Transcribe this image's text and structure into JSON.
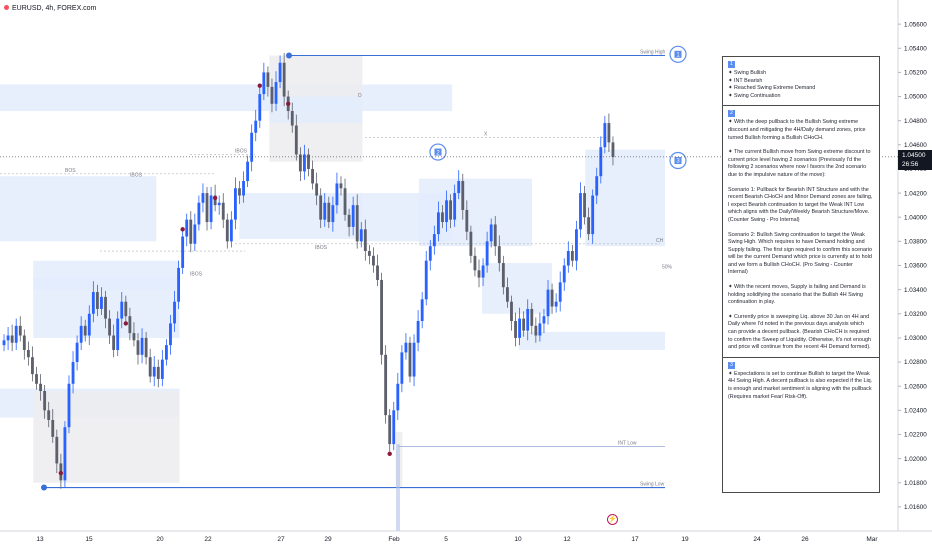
{
  "header": {
    "symbol": "EURUSD, 4h, FOREX.com"
  },
  "colors": {
    "up": "#2962ff",
    "down": "#5d606b",
    "demand": "#e3ecfd",
    "supply": "#ececef",
    "swing_line": "#3a6fd8",
    "marker": "#8b1a3a",
    "price_tag": "#131722"
  },
  "chart_data": {
    "type": "candlestick",
    "symbol": "EURUSD",
    "timeframe": "4h",
    "ylim": [
      1.014,
      1.058
    ],
    "y_ticks": [
      "1.05600",
      "1.05400",
      "1.05200",
      "1.05000",
      "1.04800",
      "1.04600",
      "1.04400",
      "1.04200",
      "1.04000",
      "1.03800",
      "1.03600",
      "1.03400",
      "1.03200",
      "1.03000",
      "1.02800",
      "1.02600",
      "1.02400",
      "1.02200",
      "1.02000",
      "1.01800",
      "1.01600"
    ],
    "x_ticks": [
      "13",
      "15",
      "20",
      "22",
      "27",
      "29",
      "Feb",
      "5",
      "10",
      "12",
      "17",
      "19",
      "24",
      "26",
      "Mar"
    ],
    "current_price": "1.04500",
    "countdown": "26:56",
    "closes": [
      1.0298,
      1.0302,
      1.0296,
      1.031,
      1.0302,
      1.029,
      1.0284,
      1.027,
      1.0262,
      1.0256,
      1.024,
      1.0232,
      1.0218,
      1.0196,
      1.0182,
      1.0226,
      1.0262,
      1.028,
      1.0296,
      1.031,
      1.0302,
      1.032,
      1.0338,
      1.0324,
      1.0334,
      1.0316,
      1.0302,
      1.029,
      1.0316,
      1.033,
      1.0318,
      1.0304,
      1.0298,
      1.0286,
      1.03,
      1.0284,
      1.0268,
      1.0276,
      1.0266,
      1.0282,
      1.0294,
      1.0312,
      1.033,
      1.0358,
      1.0384,
      1.0398,
      1.0378,
      1.0394,
      1.0412,
      1.042,
      1.0396,
      1.0418,
      1.041,
      1.0412,
      1.0398,
      1.038,
      1.0398,
      1.0424,
      1.0418,
      1.043,
      1.0446,
      1.047,
      1.048,
      1.0502,
      1.052,
      1.0508,
      1.0494,
      1.0512,
      1.0528,
      1.05,
      1.0488,
      1.0476,
      1.0452,
      1.0438,
      1.0452,
      1.044,
      1.0428,
      1.0418,
      1.0398,
      1.0412,
      1.0396,
      1.041,
      1.0428,
      1.0424,
      1.0402,
      1.0392,
      1.041,
      1.038,
      1.039,
      1.0372,
      1.0368,
      1.036,
      1.0348,
      1.0286,
      1.0236,
      1.0212,
      1.024,
      1.0262,
      1.0288,
      1.0296,
      1.0268,
      1.0296,
      1.0314,
      1.0332,
      1.0364,
      1.0376,
      1.0386,
      1.0404,
      1.0396,
      1.0414,
      1.0398,
      1.042,
      1.043,
      1.0406,
      1.0388,
      1.0368,
      1.0356,
      1.035,
      1.036,
      1.038,
      1.0394,
      1.0376,
      1.0362,
      1.0342,
      1.033,
      1.0314,
      1.03,
      1.0316,
      1.0306,
      1.0324,
      1.031,
      1.0302,
      1.0312,
      1.0318,
      1.034,
      1.0326,
      1.033,
      1.0346,
      1.036,
      1.0372,
      1.0364,
      1.039,
      1.042,
      1.04,
      1.0386,
      1.0418,
      1.0434,
      1.0458,
      1.0478,
      1.0462,
      1.045
    ],
    "annotations": [
      {
        "text": "Swing High",
        "price": 1.0534
      },
      {
        "text": "Swing Low",
        "price": 1.0176
      },
      {
        "text": "INT Low",
        "price": 1.021
      },
      {
        "text": "BOS",
        "price": 1.0436
      },
      {
        "text": "IBOS",
        "price": 1.0432
      },
      {
        "text": "IBOS",
        "price": 1.035
      },
      {
        "text": "IBOS",
        "price": 1.0452
      },
      {
        "text": "IBOS",
        "price": 1.0372
      },
      {
        "text": "CH",
        "price": 1.0378
      },
      {
        "text": "X",
        "price": 1.0466
      },
      {
        "text": "D",
        "price": 1.0498
      },
      {
        "text": "50%",
        "price": 1.0356
      }
    ],
    "zones": [
      {
        "kind": "demand",
        "from": 0.0,
        "to": 0.68,
        "top": 1.051,
        "bottom": 1.0488
      },
      {
        "kind": "demand",
        "from": 0.0,
        "to": 0.235,
        "top": 1.0434,
        "bottom": 1.038
      },
      {
        "kind": "demand",
        "from": 0.0,
        "to": 0.27,
        "top": 1.0258,
        "bottom": 1.0234
      },
      {
        "kind": "demand",
        "from": 0.05,
        "to": 0.27,
        "top": 1.0364,
        "bottom": 1.03
      },
      {
        "kind": "demand",
        "from": 0.05,
        "to": 0.27,
        "top": 1.035,
        "bottom": 1.034
      },
      {
        "kind": "supply",
        "from": 0.05,
        "to": 0.27,
        "top": 1.0256,
        "bottom": 1.018
      },
      {
        "kind": "supply",
        "from": 0.405,
        "to": 0.545,
        "top": 1.0534,
        "bottom": 1.0446
      },
      {
        "kind": "demand",
        "from": 0.405,
        "to": 0.545,
        "top": 1.05,
        "bottom": 1.0478
      },
      {
        "kind": "demand",
        "from": 0.36,
        "to": 0.545,
        "top": 1.042,
        "bottom": 1.0382
      },
      {
        "kind": "demand",
        "from": 0.54,
        "to": 0.68,
        "top": 1.042,
        "bottom": 1.038
      },
      {
        "kind": "demand",
        "from": 0.63,
        "to": 0.8,
        "top": 1.0432,
        "bottom": 1.0376
      },
      {
        "kind": "demand",
        "from": 0.725,
        "to": 0.83,
        "top": 1.0362,
        "bottom": 1.032
      },
      {
        "kind": "demand",
        "from": 0.88,
        "to": 1.0,
        "top": 1.0456,
        "bottom": 1.0376
      },
      {
        "kind": "demand",
        "from": 0.78,
        "to": 1.0,
        "top": 1.0305,
        "bottom": 1.029
      },
      {
        "kind": "supply",
        "from": 0.595,
        "to": 0.605,
        "top": 1.0222,
        "bottom": 1.0176
      }
    ],
    "swing_markers": [
      {
        "index": 0,
        "label": "1"
      },
      {
        "index": 1,
        "label": "2"
      },
      {
        "index": 2,
        "label": "3"
      }
    ]
  },
  "notes": {
    "s1_badge": "1",
    "s1_bullets": [
      "Swing Bullish",
      "INT Bearish",
      "Reached Swing Extreme Demand",
      "Swing Continuation"
    ],
    "s2_badge": "2",
    "s2_paragraphs": [
      "With the deep pullback to the Bullish Swing extreme discount and mitigating the 4H/Daily demand zones, price turned Bullish forming a Bullish CHoCH.",
      "The current Bullish move from Swing extreme discount to current price level having 2 scenarios (Previously I'd the following 2 scenarios where now I favors the 2nd scenario due to the impulsive nature of the move):",
      "Scenario 1: Pullback for Bearish INT Structure and with the recent Bearish CHoCH and Minor Demand zones are failing, I expect Bearish continuation to target the Weak INT Low which aligns with the Daily/Weekly Bearish Structure/Move. (Counter Swing - Pro Internal)",
      "Scenario 2: Bullish Swing continuation to target the Weak Swing High. Which requires to have Demand holding and Supply failing. The first sign required to confirm this scenario will be the current Demand which price is currently at to hold and we form a Bullish CHoCH. (Pro Swing - Counter Internal)",
      "With the recent moves, Supply is failing and Demand is holding solidifying the scenario that the Bullish 4H Swing continuation in play.",
      "Currently price is sweeping Liq. above 30 Jan on 4H and Daily where I'd noted in the previous days analysis which can provide a decent pullback. (Bearish CHoCH is required to confirm the Sweep of Liquidity. Otherwise, It's not enough and price will continue from the recent 4H Demand formed)."
    ],
    "s3_badge": "3",
    "s3_paragraphs": [
      "Expectations is set to continue Bullish to target the Weak 4H Swing High. A decent pullback is also expected if the Liq. is enough and market sentiment is aligning with the pullback (Requires market Fear/ Risk-Off)."
    ]
  }
}
